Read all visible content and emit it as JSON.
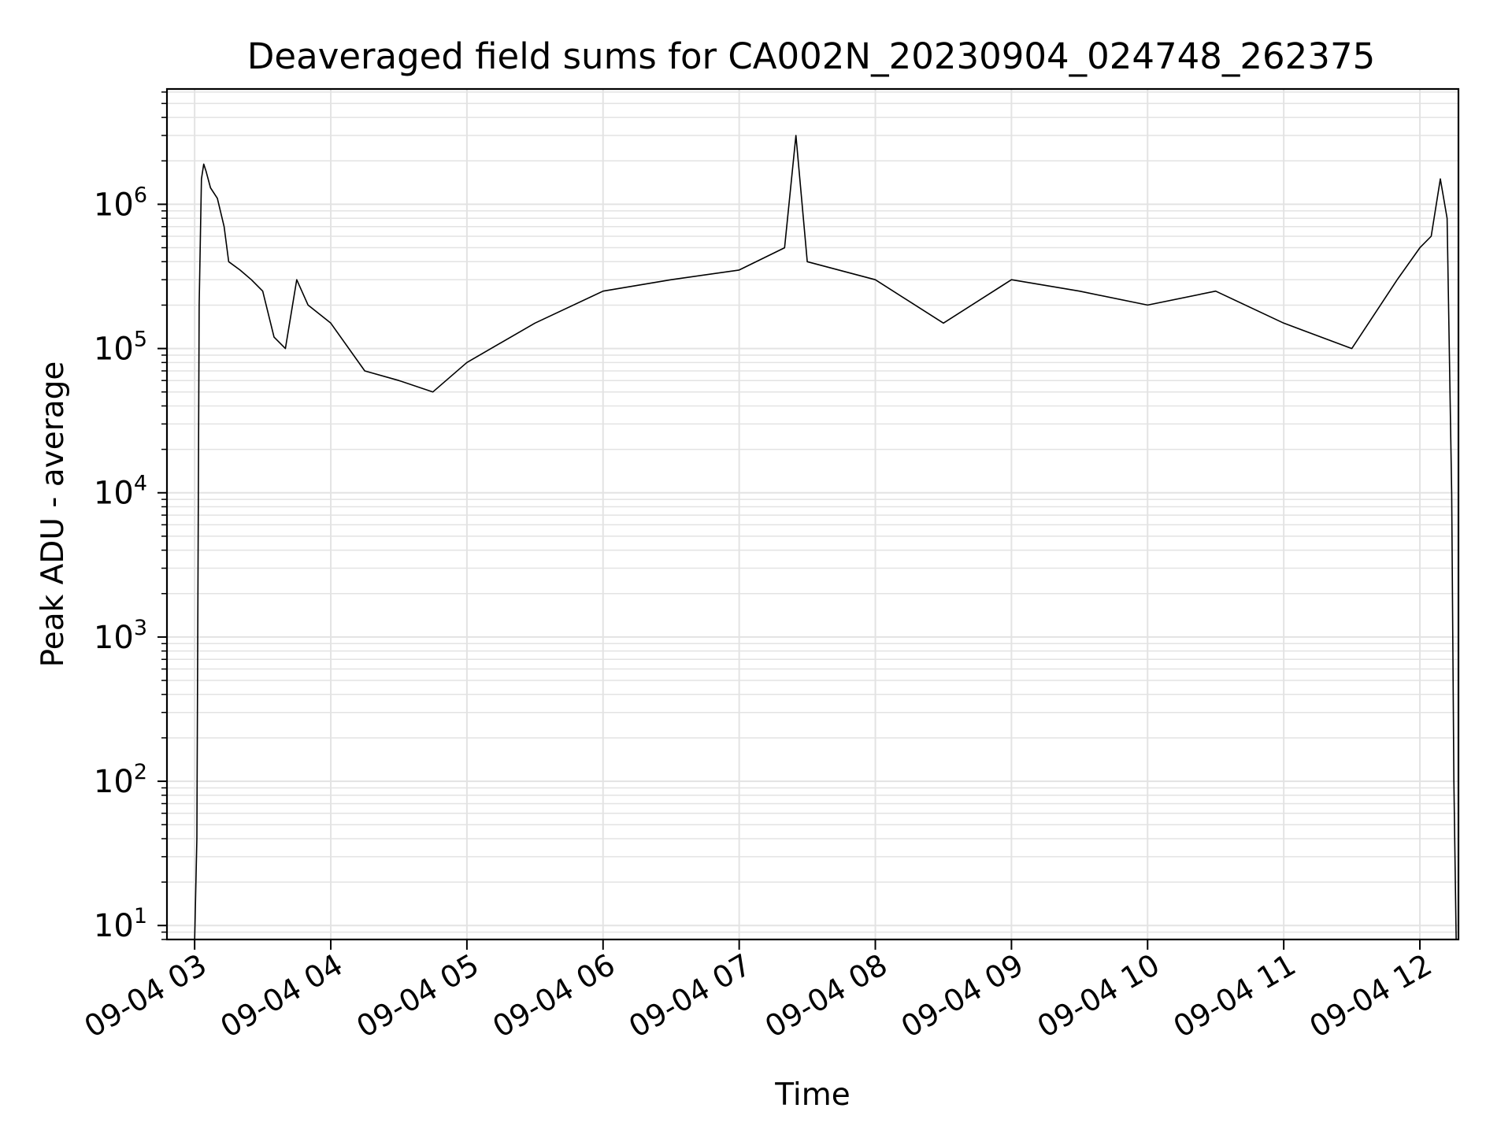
{
  "chart_data": {
    "type": "line",
    "title": "Deaveraged field sums for CA002N_20230904_024748_262375",
    "xlabel": "Time",
    "ylabel": "Peak ADU - average",
    "yscale": "log",
    "xlim": [
      "2023-09-04 02:47:48",
      "2023-09-04 12:17:00"
    ],
    "ylim": [
      8,
      6300000
    ],
    "grid": true,
    "line_color": "#000000",
    "grid_color": "#e3e3e3",
    "x_ticks": [
      {
        "value": "2023-09-04 03:00",
        "label": "09-04 03"
      },
      {
        "value": "2023-09-04 04:00",
        "label": "09-04 04"
      },
      {
        "value": "2023-09-04 05:00",
        "label": "09-04 05"
      },
      {
        "value": "2023-09-04 06:00",
        "label": "09-04 06"
      },
      {
        "value": "2023-09-04 07:00",
        "label": "09-04 07"
      },
      {
        "value": "2023-09-04 08:00",
        "label": "09-04 08"
      },
      {
        "value": "2023-09-04 09:00",
        "label": "09-04 09"
      },
      {
        "value": "2023-09-04 10:00",
        "label": "09-04 10"
      },
      {
        "value": "2023-09-04 11:00",
        "label": "09-04 11"
      },
      {
        "value": "2023-09-04 12:00",
        "label": "09-04 12"
      }
    ],
    "y_ticks": [
      {
        "value": 10,
        "base": "10",
        "exp": "1"
      },
      {
        "value": 100,
        "base": "10",
        "exp": "2"
      },
      {
        "value": 1000,
        "base": "10",
        "exp": "3"
      },
      {
        "value": 10000,
        "base": "10",
        "exp": "4"
      },
      {
        "value": 100000,
        "base": "10",
        "exp": "5"
      },
      {
        "value": 1000000,
        "base": "10",
        "exp": "6"
      }
    ],
    "series": [
      {
        "x": [
          "2023-09-04 03:00",
          "2023-09-04 03:01",
          "2023-09-04 03:02",
          "2023-09-04 03:03",
          "2023-09-04 03:04",
          "2023-09-04 03:05",
          "2023-09-04 03:07",
          "2023-09-04 03:10",
          "2023-09-04 03:13",
          "2023-09-04 03:15",
          "2023-09-04 03:20",
          "2023-09-04 03:25",
          "2023-09-04 03:30",
          "2023-09-04 03:35",
          "2023-09-04 03:40",
          "2023-09-04 03:45",
          "2023-09-04 03:50",
          "2023-09-04 04:00",
          "2023-09-04 04:15",
          "2023-09-04 04:30",
          "2023-09-04 04:45",
          "2023-09-04 05:00",
          "2023-09-04 05:30",
          "2023-09-04 06:00",
          "2023-09-04 06:30",
          "2023-09-04 07:00",
          "2023-09-04 07:20",
          "2023-09-04 07:25",
          "2023-09-04 07:30",
          "2023-09-04 08:00",
          "2023-09-04 08:30",
          "2023-09-04 09:00",
          "2023-09-04 09:30",
          "2023-09-04 10:00",
          "2023-09-04 10:30",
          "2023-09-04 11:00",
          "2023-09-04 11:30",
          "2023-09-04 11:50",
          "2023-09-04 12:00",
          "2023-09-04 12:05",
          "2023-09-04 12:09",
          "2023-09-04 12:12",
          "2023-09-04 12:14",
          "2023-09-04 12:15",
          "2023-09-04 12:16"
        ],
        "y": [
          8,
          40,
          200000,
          1500000,
          1900000,
          1700000,
          1300000,
          1100000,
          700000,
          400000,
          350000,
          300000,
          250000,
          120000,
          100000,
          300000,
          200000,
          150000,
          70000,
          60000,
          50000,
          80000,
          150000,
          250000,
          300000,
          350000,
          500000,
          3000000,
          400000,
          300000,
          150000,
          300000,
          250000,
          200000,
          250000,
          150000,
          100000,
          300000,
          500000,
          600000,
          1500000,
          800000,
          10000,
          100,
          8
        ]
      }
    ]
  }
}
